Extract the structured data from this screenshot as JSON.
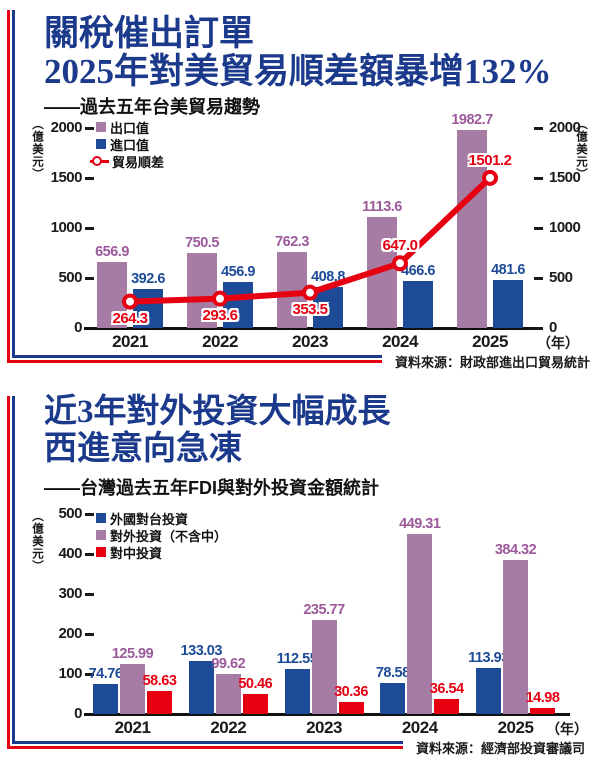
{
  "colors": {
    "title_blue": "#1c3a8c",
    "text": "#1a1a1a",
    "purple": "#a77ca4",
    "blue": "#1d4b98",
    "red": "#e60012"
  },
  "section1": {
    "title_line1": "關稅催出訂單",
    "title_line2": "2025年對美貿易順差額暴增132%",
    "subtitle": "——過去五年台美貿易趨勢",
    "source": "資料來源：財政部進出口貿易統計",
    "chart_data": {
      "type": "bar+line",
      "title": "過去五年台美貿易趨勢",
      "categories": [
        "2021",
        "2022",
        "2023",
        "2024",
        "2025"
      ],
      "series": [
        {
          "name": "出口值",
          "type": "bar",
          "color": "#a77ca4",
          "label_color": "#9c5a9b",
          "values": [
            656.9,
            750.5,
            762.3,
            1113.6,
            1982.7
          ],
          "labels": [
            "656.9",
            "750.5",
            "762.3",
            "1113.6",
            "1982.7"
          ]
        },
        {
          "name": "進口值",
          "type": "bar",
          "color": "#1d4b98",
          "label_color": "#1d4b98",
          "values": [
            392.6,
            456.9,
            408.8,
            466.6,
            481.6
          ],
          "labels": [
            "392.6",
            "456.9",
            "408.8",
            "466.6",
            "481.6"
          ]
        },
        {
          "name": "貿易順差",
          "type": "line",
          "color": "#e60012",
          "label_color": "#e60012",
          "values": [
            264.3,
            293.6,
            353.5,
            647.0,
            1501.2
          ],
          "labels": [
            "264.3",
            "293.6",
            "353.5",
            "647.0",
            "1501.2"
          ],
          "label_side": [
            "below",
            "below",
            "below",
            "above",
            "above"
          ]
        }
      ],
      "ylabel": "（億美元）",
      "x_unit": "（年）",
      "ylim": [
        0,
        2000
      ],
      "yticks": [
        2000,
        1500,
        1000,
        500,
        0
      ],
      "legend_position": "top-left",
      "grid": false
    }
  },
  "section2": {
    "title_line1": "近3年對外投資大幅成長",
    "title_line2": "西進意向急凍",
    "subtitle": "——台灣過去五年FDI與對外投資金額統計",
    "source": "資料來源：經濟部投資審議司",
    "chart_data": {
      "type": "bar",
      "title": "台灣過去五年FDI與對外投資金額統計",
      "categories": [
        "2021",
        "2022",
        "2023",
        "2024",
        "2025"
      ],
      "series": [
        {
          "name": "外國對台投資",
          "type": "bar",
          "color": "#1d4b98",
          "label_color": "#1d4b98",
          "values": [
            74.76,
            133.03,
            112.55,
            78.58,
            113.93
          ],
          "labels": [
            "74.76",
            "133.03",
            "112.55",
            "78.58",
            "113.93"
          ]
        },
        {
          "name": "對外投資（不含中）",
          "type": "bar",
          "color": "#a77ca4",
          "label_color": "#9c5a9b",
          "values": [
            125.99,
            99.62,
            235.77,
            449.31,
            384.32
          ],
          "labels": [
            "125.99",
            "99.62",
            "235.77",
            "449.31",
            "384.32"
          ]
        },
        {
          "name": "對中投資",
          "type": "bar",
          "color": "#e60012",
          "label_color": "#e60012",
          "values": [
            58.63,
            50.46,
            30.36,
            36.54,
            14.98
          ],
          "labels": [
            "58.63",
            "50.46",
            "30.36",
            "36.54",
            "14.98"
          ]
        }
      ],
      "ylabel": "（億美元）",
      "x_unit": "（年）",
      "ylim": [
        0,
        500
      ],
      "yticks": [
        500,
        400,
        300,
        200,
        100,
        0
      ],
      "legend_position": "top-left",
      "grid": false
    }
  }
}
